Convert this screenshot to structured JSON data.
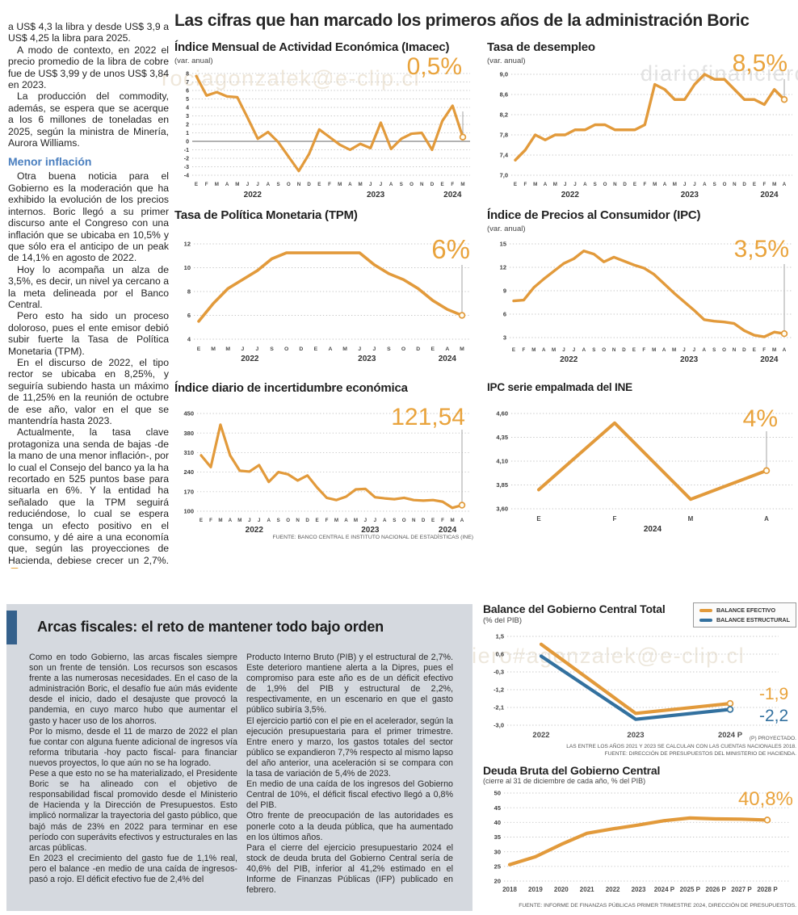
{
  "headline": "Las cifras que han marcado los primeros años de la administración Boric",
  "watermarks": {
    "left": "rociagonzalek@e-clip.cl",
    "right": "diariofinanciero",
    "bottom": "diariofinanciero#agonzalek@e-clip.cl"
  },
  "colors": {
    "accent_orange": "#E49B3B",
    "line_blue": "#33719F",
    "subhead_blue": "#4A7FBF",
    "box_bg": "#D5D9DF",
    "accent_bar_blue": "#35618C"
  },
  "article": {
    "paragraphs": [
      "a US$ 4,3 la libra y desde US$ 3,9 a US$ 4,25 la libra para 2025.",
      "A modo de contexto, en 2022 el precio promedio de la libra de cobre fue de US$ 3,99 y de unos US$ 3,84 en 2023.",
      "La producción del commodity, además, se espera que se acerque a los 6 millones de toneladas en 2025, según la ministra de Minería, Aurora Williams.",
      "Otra buena noticia para el Gobierno es la moderación que ha exhibido la evolución de los precios internos. Boric llegó a su primer discurso ante el Congreso con una inflación que se ubicaba en 10,5% y que sólo era el anticipo de un peak de 14,1% en agosto de 2022.",
      "Hoy lo acompaña un alza de 3,5%, es decir, un nivel ya cercano a la meta delineada por el Banco Central.",
      "Pero esto ha sido un proceso doloroso, pues el ente emisor debió subir fuerte la Tasa de Política Monetaria (TPM).",
      "En el discurso de 2022, el tipo rector se ubicaba en 8,25%, y seguiría subiendo hasta un máximo de 11,25% en la reunión de octubre de ese año, valor en el que se mantendría hasta 2023.",
      "Actualmente, la tasa clave protagoniza una senda de bajas -de la mano de una menor inflación-, por lo cual el Consejo del banco ya la ha recortado en 525 puntos base para situarla en 6%. Y la entidad ha señalado que la TPM seguirá reduciéndose, lo cual se espera tenga un efecto positivo en el consumo, y dé aire a una economía que, según las proyecciones de Hacienda, debiese crecer un 2,7%."
    ],
    "subhead": "Menor inflación"
  },
  "fiscal_box": {
    "headline": "Arcas fiscales: el reto de mantener todo bajo orden",
    "col1": [
      "Como en todo Gobierno, las arcas fiscales siempre son un frente de tensión. Los recursos son escasos frente a las numerosas necesidades. En el caso de la administración Boric, el desafío fue aún más evidente desde el inicio, dado el desajuste que provocó la pandemia, en cuyo marco hubo que aumentar el gasto y hacer uso de los ahorros.",
      "Por lo mismo, desde el 11 de marzo de 2022 el plan fue contar con alguna fuente adicional de ingresos vía reforma tributaria -hoy pacto fiscal- para financiar nuevos proyectos, lo que aún no se ha logrado.",
      "Pese a que esto no se ha materializado, el Presidente Boric se ha alineado con el objetivo de responsabilidad fiscal promovido desde el Ministerio de Hacienda y la Dirección de Presupuestos. Esto implicó normalizar la trayectoria del gasto público, que bajó más de 23% en 2022 para terminar en ese período con superávits efectivos y estructurales en las arcas públicas.",
      "En 2023 el crecimiento del gasto fue de 1,1% real, pero el balance -en medio de una caída de ingresos-  pasó a rojo. El déficit efectivo fue de 2,4% del"
    ],
    "col2": [
      "Producto Interno Bruto (PIB) y el estructural de 2,7%. Este deterioro mantiene alerta a la Dipres, pues el compromiso para este año es de un déficit efectivo de 1,9% del PIB y estructural de 2,2%, respectivamente, en un escenario en que el gasto público subiría 3,5%.",
      "El ejercicio partió con el pie en el acelerador, según la ejecución presupuestaria para el primer trimestre. Entre enero y marzo, los gastos totales del sector público se expandieron 7,7% respecto al mismo lapso del año anterior, una aceleración si se compara con la tasa de variación de 5,4% de 2023.",
      "En medio de una caída de los ingresos del Gobierno Central de 10%, el déficit fiscal efectivo llegó a 0,8% del PIB.",
      "Otro frente de preocupación de las autoridades es ponerle coto a la deuda pública, que ha aumentado en los últimos años.",
      "Para el cierre del ejercicio presupuestario 2024 el stock de deuda bruta del Gobierno Central sería de 40,6% del PIB, inferior al 41,2% estimado en el Informe de Finanzas Públicas (IFP) publicado en febrero."
    ]
  },
  "chart_data": [
    {
      "type": "line",
      "title": "Índice Mensual de Actividad Económica (Imacec)",
      "subtitle": "(var. anual)",
      "big_label": "0,5%",
      "x_labels": [
        "E",
        "F",
        "M",
        "A",
        "M",
        "J",
        "J",
        "A",
        "S",
        "O",
        "N",
        "D",
        "E",
        "F",
        "M",
        "A",
        "M",
        "J",
        "J",
        "A",
        "S",
        "O",
        "N",
        "D",
        "E",
        "F",
        "M"
      ],
      "year_groups": [
        {
          "label": "2022",
          "from": 0,
          "to": 11
        },
        {
          "label": "2023",
          "from": 12,
          "to": 23
        },
        {
          "label": "2024",
          "from": 24,
          "to": 26
        }
      ],
      "y_tick_vals": [
        8,
        7,
        6,
        5,
        4,
        3,
        2,
        1,
        0,
        -1,
        -2,
        -3,
        -4
      ],
      "y_tick_labels": [
        "8",
        "7",
        "6",
        "5",
        "4",
        "3",
        "2",
        "1",
        "0",
        "-1",
        "-2",
        "-3",
        "-4"
      ],
      "y_min": -4,
      "y_max": 8,
      "zero_line": true,
      "vline": true,
      "final_marker": true,
      "series": [
        {
          "name": "Imacec",
          "color": "#E29A3B",
          "values": [
            7.7,
            5.4,
            5.8,
            5.3,
            5.2,
            2.8,
            0.3,
            1.1,
            -0.1,
            -1.8,
            -3.5,
            -1.5,
            1.4,
            0.5,
            -0.4,
            -1.0,
            -0.3,
            -0.8,
            2.2,
            -0.9,
            0.3,
            0.9,
            1.0,
            -1.0,
            2.4,
            4.2,
            0.5
          ]
        }
      ]
    },
    {
      "type": "line",
      "title": "Tasa de desempleo",
      "subtitle": "(var. anual)",
      "big_label": "8,5%",
      "x_labels": [
        "E",
        "F",
        "M",
        "A",
        "M",
        "J",
        "J",
        "A",
        "S",
        "O",
        "N",
        "D",
        "E",
        "F",
        "M",
        "A",
        "M",
        "J",
        "J",
        "A",
        "S",
        "O",
        "N",
        "D",
        "E",
        "F",
        "M",
        "A"
      ],
      "year_groups": [
        {
          "label": "2022",
          "from": 0,
          "to": 11
        },
        {
          "label": "2023",
          "from": 12,
          "to": 23
        },
        {
          "label": "2024",
          "from": 24,
          "to": 27
        }
      ],
      "y_tick_vals": [
        9.0,
        8.6,
        8.2,
        7.8,
        7.4,
        7.0
      ],
      "y_tick_labels": [
        "9,0",
        "8,6",
        "8,2",
        "7,8",
        "7,4",
        "7,0"
      ],
      "y_min": 7.0,
      "y_max": 9.0,
      "vline": true,
      "final_marker": true,
      "series": [
        {
          "name": "Tasa de desempleo",
          "color": "#E29A3B",
          "values": [
            7.3,
            7.5,
            7.8,
            7.7,
            7.8,
            7.8,
            7.9,
            7.9,
            8.0,
            8.0,
            7.9,
            7.9,
            7.9,
            8.0,
            8.8,
            8.7,
            8.5,
            8.5,
            8.8,
            9.0,
            8.9,
            8.9,
            8.7,
            8.5,
            8.5,
            8.4,
            8.7,
            8.5
          ]
        }
      ]
    },
    {
      "type": "line",
      "title": "Tasa de Política Monetaria (TPM)",
      "big_label": "6%",
      "x_labels": [
        "E",
        "M",
        "M",
        "J",
        "J",
        "S",
        "O",
        "D",
        "E",
        "A",
        "M",
        "J",
        "J",
        "S",
        "O",
        "D",
        "E",
        "A",
        "M"
      ],
      "year_groups": [
        {
          "label": "2022",
          "from": 0,
          "to": 7
        },
        {
          "label": "2023",
          "from": 8,
          "to": 15
        },
        {
          "label": "2024",
          "from": 16,
          "to": 18
        }
      ],
      "y_tick_vals": [
        12,
        10,
        8,
        6,
        4
      ],
      "y_tick_labels": [
        "12",
        "10",
        "8",
        "6",
        "4"
      ],
      "y_min": 4,
      "y_max": 12,
      "vline": true,
      "final_marker": true,
      "series": [
        {
          "name": "TPM",
          "color": "#E29A3B",
          "values": [
            5.5,
            7.0,
            8.25,
            9.0,
            9.75,
            10.75,
            11.25,
            11.25,
            11.25,
            11.25,
            11.25,
            11.25,
            10.25,
            9.5,
            9.0,
            8.25,
            7.25,
            6.5,
            6.0
          ]
        }
      ]
    },
    {
      "type": "line",
      "title": "Índice de Precios al Consumidor (IPC)",
      "subtitle": "(var. anual)",
      "big_label": "3,5%",
      "x_labels": [
        "E",
        "F",
        "M",
        "A",
        "M",
        "J",
        "J",
        "A",
        "S",
        "O",
        "N",
        "D",
        "E",
        "F",
        "M",
        "A",
        "M",
        "J",
        "J",
        "A",
        "S",
        "O",
        "N",
        "D",
        "E",
        "F",
        "M",
        "A"
      ],
      "year_groups": [
        {
          "label": "2022",
          "from": 0,
          "to": 11
        },
        {
          "label": "2023",
          "from": 12,
          "to": 23
        },
        {
          "label": "2024",
          "from": 24,
          "to": 27
        }
      ],
      "y_tick_vals": [
        15,
        12,
        9,
        6,
        3
      ],
      "y_tick_labels": [
        "15",
        "12",
        "9",
        "6",
        "3"
      ],
      "y_min": 3,
      "y_max": 15,
      "vline": true,
      "final_marker": true,
      "series": [
        {
          "name": "IPC",
          "color": "#E29A3B",
          "values": [
            7.7,
            7.8,
            9.4,
            10.5,
            11.5,
            12.5,
            13.1,
            14.1,
            13.7,
            12.7,
            13.3,
            12.8,
            12.3,
            11.9,
            11.1,
            9.9,
            8.7,
            7.6,
            6.5,
            5.3,
            5.1,
            5.0,
            4.8,
            3.9,
            3.3,
            3.1,
            3.7,
            3.5
          ]
        }
      ]
    },
    {
      "type": "line",
      "title": "Índice diario de incertidumbre económica",
      "big_label": "121,54",
      "source": "FUENTE: BANCO CENTRAL E INSTITUTO NACIONAL DE ESTADÍSTICAS (INE)",
      "x_labels": [
        "E",
        "F",
        "M",
        "A",
        "M",
        "J",
        "J",
        "A",
        "S",
        "O",
        "N",
        "D",
        "E",
        "F",
        "M",
        "A",
        "M",
        "J",
        "J",
        "A",
        "S",
        "O",
        "N",
        "D",
        "E",
        "F",
        "M",
        "A"
      ],
      "year_groups": [
        {
          "label": "2022",
          "from": 0,
          "to": 11
        },
        {
          "label": "2023",
          "from": 12,
          "to": 23
        },
        {
          "label": "2024",
          "from": 24,
          "to": 27
        }
      ],
      "y_tick_vals": [
        450,
        380,
        310,
        240,
        170,
        100
      ],
      "y_tick_labels": [
        "450",
        "380",
        "310",
        "240",
        "170",
        "100"
      ],
      "y_min": 100,
      "y_max": 450,
      "vline": true,
      "final_marker": true,
      "series": [
        {
          "name": "Incertidumbre económica",
          "color": "#E29A3B",
          "values": [
            300,
            258,
            410,
            300,
            245,
            242,
            265,
            205,
            240,
            232,
            210,
            228,
            185,
            148,
            140,
            152,
            178,
            180,
            150,
            146,
            143,
            148,
            140,
            138,
            140,
            134,
            112,
            121.54
          ]
        }
      ]
    },
    {
      "type": "line",
      "title": "IPC serie empalmada del INE",
      "big_label": "4%",
      "x_labels": [
        "E",
        "F",
        "M",
        "A"
      ],
      "year_groups": [
        {
          "label": "2024",
          "from": 0,
          "to": 3
        }
      ],
      "y_tick_vals": [
        4.6,
        4.35,
        4.1,
        3.85,
        3.6
      ],
      "y_tick_labels": [
        "4,60",
        "4,35",
        "4,10",
        "3,85",
        "3,60"
      ],
      "y_min": 3.6,
      "y_max": 4.6,
      "vline": true,
      "final_marker": true,
      "series": [
        {
          "name": "IPC serie empalmada",
          "color": "#E29A3B",
          "values": [
            3.8,
            4.5,
            3.7,
            4.0
          ]
        }
      ]
    },
    {
      "type": "line",
      "title": "Balance del Gobierno Central Total",
      "subtitle": "(% del PIB)",
      "x_labels": [
        "2022",
        "2023",
        "2024 P"
      ],
      "y_tick_vals": [
        1.5,
        0.6,
        -0.3,
        -1.2,
        -2.1,
        -3.0
      ],
      "y_tick_labels": [
        "1,5",
        "0,6",
        "-0,3",
        "-1,2",
        "-2,1",
        "-3,0"
      ],
      "y_min": -3.0,
      "y_max": 1.5,
      "final_marker": true,
      "end_labels": [
        "-1,9",
        "-2,2"
      ],
      "footnotes": [
        "(P) PROYECTADO.",
        "LAS ENTRE LOS AÑOS 2021 Y 2023 SE CALCULAN  CON LAS CUENTAS NACIONALES 2018.",
        "FUENTE: DIRECCIÓN DE PRESUPUESTOS DEL MINISTERIO DE HACIENDA."
      ],
      "series": [
        {
          "name": "BALANCE EFECTIVO",
          "color": "#E29A3B",
          "values": [
            1.1,
            -2.4,
            -1.9
          ]
        },
        {
          "name": "BALANCE ESTRUCTURAL",
          "color": "#33719F",
          "values": [
            0.5,
            -2.7,
            -2.2
          ]
        }
      ]
    },
    {
      "type": "line",
      "title": "Deuda Bruta del Gobierno Central",
      "subtitle": "(cierre al 31 de diciembre de cada año, % del PIB)",
      "big_label": "40,8%",
      "source": "FUENTE: INFORME DE FINANZAS PÚBLICAS PRIMER TRIMESTRE 2024, DIRECCIÓN DE PRESUPUESTOS.",
      "x_labels": [
        "2018",
        "2019",
        "2020",
        "2021",
        "2022",
        "2023",
        "2024 P",
        "2025 P",
        "2026 P",
        "2027 P",
        "2028 P"
      ],
      "y_tick_vals": [
        50,
        45,
        40,
        35,
        30,
        25,
        20
      ],
      "y_tick_labels": [
        "50",
        "45",
        "40",
        "35",
        "30",
        "25",
        "20"
      ],
      "y_min": 20,
      "y_max": 50,
      "final_marker": true,
      "series": [
        {
          "name": "Deuda bruta",
          "color": "#E29A3B",
          "values": [
            25.6,
            28.3,
            32.5,
            36.3,
            37.8,
            39.1,
            40.6,
            41.5,
            41.2,
            41.1,
            40.8
          ]
        }
      ]
    }
  ]
}
